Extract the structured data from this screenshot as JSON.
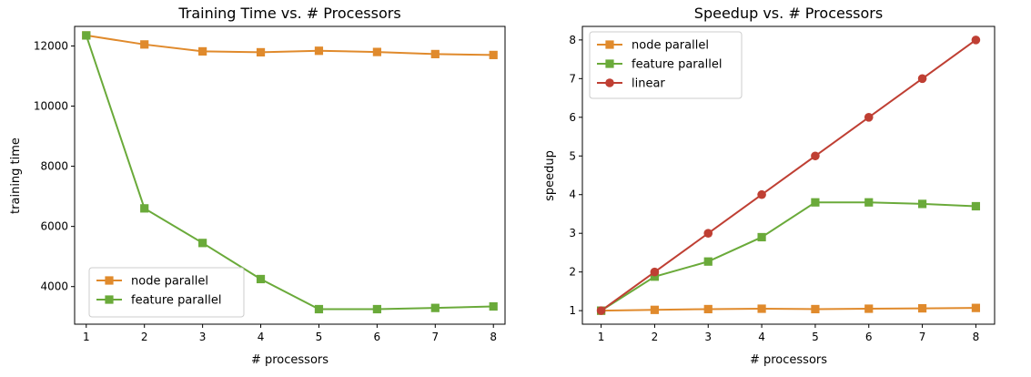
{
  "chart_data": [
    {
      "type": "line",
      "title": "Training Time vs. # Processors",
      "xlabel": "# processors",
      "ylabel": "training time",
      "x": [
        1,
        2,
        3,
        4,
        5,
        6,
        7,
        8
      ],
      "xlim": [
        0.8,
        8.2
      ],
      "ylim": [
        2750,
        12650
      ],
      "xticks": [
        1,
        2,
        3,
        4,
        5,
        6,
        7,
        8
      ],
      "yticks": [
        4000,
        6000,
        8000,
        10000,
        12000
      ],
      "legend_position": "lower-left",
      "grid": false,
      "series": [
        {
          "name": "node parallel",
          "color": "#e08a2c",
          "marker": "square",
          "values": [
            12350,
            12050,
            11820,
            11790,
            11840,
            11800,
            11730,
            11700
          ]
        },
        {
          "name": "feature parallel",
          "color": "#6aaa3a",
          "marker": "square",
          "values": [
            12350,
            6600,
            5450,
            4250,
            3250,
            3250,
            3290,
            3340
          ]
        }
      ]
    },
    {
      "type": "line",
      "title": "Speedup vs. # Processors",
      "xlabel": "# processors",
      "ylabel": "speedup",
      "x": [
        1,
        2,
        3,
        4,
        5,
        6,
        7,
        8
      ],
      "xlim": [
        0.65,
        8.35
      ],
      "ylim": [
        0.65,
        8.35
      ],
      "xticks": [
        1,
        2,
        3,
        4,
        5,
        6,
        7,
        8
      ],
      "yticks": [
        1,
        2,
        3,
        4,
        5,
        6,
        7,
        8
      ],
      "legend_position": "upper-left",
      "grid": false,
      "series": [
        {
          "name": "node parallel",
          "color": "#e08a2c",
          "marker": "square",
          "values": [
            1.0,
            1.02,
            1.04,
            1.05,
            1.04,
            1.05,
            1.06,
            1.07
          ]
        },
        {
          "name": "feature parallel",
          "color": "#6aaa3a",
          "marker": "square",
          "values": [
            1.0,
            1.88,
            2.27,
            2.9,
            3.8,
            3.8,
            3.76,
            3.7
          ]
        },
        {
          "name": "linear",
          "color": "#bf3f33",
          "marker": "circle",
          "values": [
            1,
            2,
            3,
            4,
            5,
            6,
            7,
            8
          ]
        }
      ]
    }
  ]
}
